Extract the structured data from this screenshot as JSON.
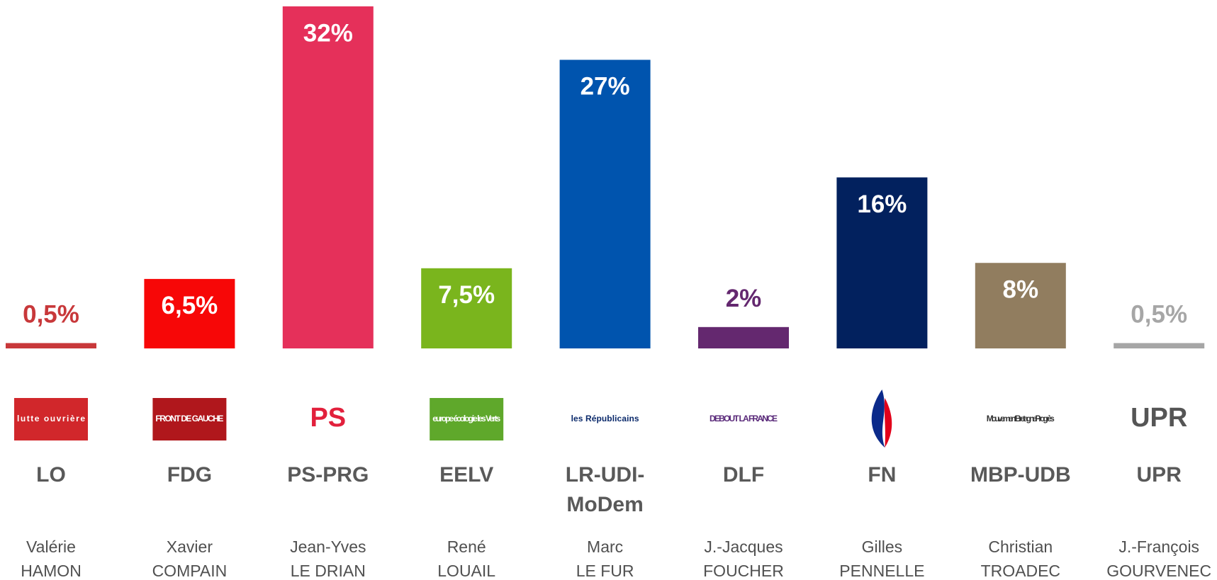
{
  "chart_data": {
    "type": "bar",
    "categories": [
      "LO",
      "FDG",
      "PS-PRG",
      "EELV",
      "LR-UDI-MoDem",
      "DLF",
      "FN",
      "MBP-UDB",
      "UPR"
    ],
    "values": [
      0.5,
      6.5,
      32,
      7.5,
      27,
      2,
      16,
      8,
      0.5
    ],
    "value_labels": [
      "0,5%",
      "6,5%",
      "32%",
      "7,5%",
      "27%",
      "2%",
      "16%",
      "8%",
      "0,5%"
    ],
    "colors": [
      "#c8383a",
      "#f70707",
      "#e5305a",
      "#7ab51d",
      "#0054ae",
      "#64286f",
      "#02215e",
      "#917d5f",
      "#a6a6a6"
    ],
    "candidates": [
      [
        "Valérie",
        "HAMON"
      ],
      [
        "Xavier",
        "COMPAIN"
      ],
      [
        "Jean-Yves",
        "LE DRIAN"
      ],
      [
        "René",
        "LOUAIL"
      ],
      [
        "Marc",
        "LE FUR"
      ],
      [
        "J.-Jacques",
        "FOUCHER"
      ],
      [
        "Gilles",
        "PENNELLE"
      ],
      [
        "Christian",
        "TROADEC"
      ],
      [
        "J.-François",
        "GOURVENEC"
      ]
    ],
    "logos": [
      {
        "text": "lutte ouvrière",
        "color": "#ffffff",
        "bg": "#d1272b"
      },
      {
        "text": "FRONT DE GAUCHE",
        "color": "#ffffff",
        "bg": "#b0171c"
      },
      {
        "text": "PS",
        "color": "#e2203c",
        "bg": null
      },
      {
        "text": "europe écologie les Verts",
        "color": "#ffffff",
        "bg": "#5fa82b"
      },
      {
        "text": "les Républicains",
        "color": "#0b2a6b",
        "bg": null
      },
      {
        "text": "DEBOUT LA FRANCE",
        "color": "#5a2a7a",
        "bg": null
      },
      {
        "text": null,
        "color": "#e2001a",
        "bg": null
      },
      {
        "text": "Mouvement Bretagne Progrès",
        "color": "#333333",
        "bg": null
      },
      {
        "text": "UPR",
        "color": "#555555",
        "bg": null
      }
    ]
  }
}
